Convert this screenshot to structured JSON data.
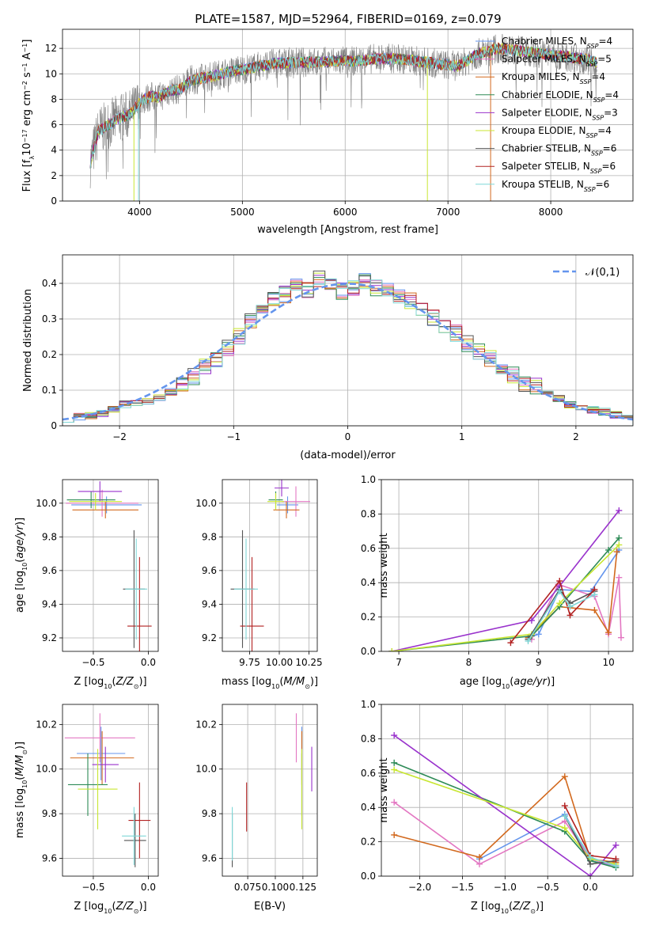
{
  "figure": {
    "title": "PLATE=1587, MJD=52964, FIBERID=0169, z=0.079"
  },
  "colors": {
    "Chabrier MILES": "#6495ed",
    "Salpeter MILES": "#e377c2",
    "Kroupa MILES": "#d2691e",
    "Chabrier ELODIE": "#2e8b57",
    "Salpeter ELODIE": "#9932cc",
    "Kroupa ELODIE": "#c8e632",
    "Chabrier STELIB": "#555555",
    "Salpeter STELIB": "#b22222",
    "Kroupa STELIB": "#7fd7d7",
    "normal_curve": "#6495ed",
    "data_spectrum": "#808080"
  },
  "chart_data": [
    {
      "id": "spectrum",
      "type": "line",
      "title": "PLATE=1587, MJD=52964, FIBERID=0169, z=0.079",
      "xlabel": "wavelength [Angstrom, rest frame]",
      "ylabel": "Flux [f_λ 10^-17 erg cm^-2 s^-1 A^-1]",
      "xlim": [
        3250,
        8800
      ],
      "ylim": [
        0,
        13.5
      ],
      "xticks": [
        4000,
        5000,
        6000,
        7000,
        8000
      ],
      "yticks": [
        0,
        2,
        4,
        6,
        8,
        10,
        12
      ],
      "legend_position": "right",
      "legend": [
        {
          "name": "Chabrier MILES",
          "nssp": 4
        },
        {
          "name": "Salpeter MILES",
          "nssp": 5
        },
        {
          "name": "Kroupa MILES",
          "nssp": 4
        },
        {
          "name": "Chabrier ELODIE",
          "nssp": 4
        },
        {
          "name": "Salpeter ELODIE",
          "nssp": 3
        },
        {
          "name": "Kroupa ELODIE",
          "nssp": 4
        },
        {
          "name": "Chabrier STELIB",
          "nssp": 6
        },
        {
          "name": "Salpeter STELIB",
          "nssp": 6
        },
        {
          "name": "Kroupa STELIB",
          "nssp": 6
        }
      ],
      "continuum": {
        "x": [
          3520,
          3600,
          3700,
          3800,
          3900,
          3950,
          4000,
          4100,
          4200,
          4300,
          4400,
          4500,
          4700,
          4900,
          5100,
          5300,
          5500,
          5700,
          5900,
          6100,
          6300,
          6500,
          6700,
          6900,
          7100,
          7300,
          7400,
          7500,
          7700,
          7900,
          8100,
          8300,
          8450
        ],
        "y": [
          3.0,
          5.5,
          6.0,
          6.5,
          6.8,
          7.2,
          7.8,
          8.2,
          8.2,
          8.7,
          8.8,
          9.5,
          9.8,
          10.2,
          10.5,
          10.8,
          10.9,
          10.9,
          11.0,
          11.0,
          11.2,
          11.2,
          11.0,
          10.8,
          10.6,
          11.6,
          11.8,
          12.0,
          11.8,
          11.6,
          11.4,
          11.2,
          10.9
        ]
      },
      "model_drops_x": [
        3945,
        3990,
        6800,
        7415
      ]
    },
    {
      "id": "residuals",
      "type": "bar",
      "xlabel": "(data-model)/error",
      "ylabel": "Normed distribution",
      "xlim": [
        -2.5,
        2.5
      ],
      "ylim": [
        0,
        0.48
      ],
      "xticks": [
        -2,
        -1,
        0,
        1,
        2
      ],
      "yticks": [
        0.0,
        0.1,
        0.2,
        0.3,
        0.4
      ],
      "bin_width": 0.1,
      "legend_position": "top-right",
      "legend": [
        {
          "name": "𝒩(0,1)"
        }
      ],
      "histogram": {
        "bin_left": [
          -2.5,
          -2.4,
          -2.3,
          -2.2,
          -2.1,
          -2.0,
          -1.9,
          -1.8,
          -1.7,
          -1.6,
          -1.5,
          -1.4,
          -1.3,
          -1.2,
          -1.1,
          -1.0,
          -0.9,
          -0.8,
          -0.7,
          -0.6,
          -0.5,
          -0.4,
          -0.3,
          -0.2,
          -0.1,
          0.0,
          0.1,
          0.2,
          0.3,
          0.4,
          0.5,
          0.6,
          0.7,
          0.8,
          0.9,
          1.0,
          1.1,
          1.2,
          1.3,
          1.4,
          1.5,
          1.6,
          1.7,
          1.8,
          1.9,
          2.0,
          2.1,
          2.2,
          2.3,
          2.4
        ],
        "counts": [
          0.02,
          0.025,
          0.03,
          0.035,
          0.045,
          0.06,
          0.065,
          0.07,
          0.08,
          0.095,
          0.11,
          0.14,
          0.17,
          0.19,
          0.22,
          0.25,
          0.29,
          0.33,
          0.35,
          0.37,
          0.39,
          0.38,
          0.41,
          0.39,
          0.38,
          0.39,
          0.41,
          0.39,
          0.38,
          0.37,
          0.35,
          0.32,
          0.3,
          0.28,
          0.26,
          0.23,
          0.21,
          0.19,
          0.16,
          0.14,
          0.12,
          0.11,
          0.09,
          0.075,
          0.06,
          0.05,
          0.045,
          0.04,
          0.03,
          0.02
        ]
      },
      "normal_pdf": {
        "mean": 0,
        "sigma": 1
      }
    },
    {
      "id": "age-vs-Z",
      "type": "scatter",
      "xlabel": "Z [log10(Z/Z⊙)]",
      "ylabel": "age [log10(age/yr)]",
      "xlim": [
        -0.78,
        0.09
      ],
      "ylim": [
        9.12,
        10.14
      ],
      "xticks": [
        -0.5,
        0.0
      ],
      "xticklabels": [
        "−0.5",
        "0.0"
      ],
      "yticks": [
        9.2,
        9.4,
        9.6,
        9.8,
        10.0
      ],
      "yticklabels": [
        "9.2",
        "9.4",
        "9.6",
        "9.8",
        "10.0"
      ],
      "points": [
        {
          "series": "Chabrier MILES",
          "x": -0.38,
          "y": 9.99,
          "xerr": 0.32,
          "yerr": 0.05
        },
        {
          "series": "Salpeter MILES",
          "x": -0.42,
          "y": 10.0,
          "xerr": 0.33,
          "yerr": 0.08
        },
        {
          "series": "Kroupa MILES",
          "x": -0.39,
          "y": 9.96,
          "xerr": 0.3,
          "yerr": 0.05
        },
        {
          "series": "Chabrier ELODIE",
          "x": -0.52,
          "y": 10.02,
          "xerr": 0.22,
          "yerr": 0.05
        },
        {
          "series": "Salpeter ELODIE",
          "x": -0.44,
          "y": 10.07,
          "xerr": 0.2,
          "yerr": 0.06
        },
        {
          "series": "Kroupa ELODIE",
          "x": -0.48,
          "y": 10.01,
          "xerr": 0.24,
          "yerr": 0.05
        },
        {
          "series": "Chabrier STELIB",
          "x": -0.13,
          "y": 9.49,
          "xerr": 0.1,
          "yerr": 0.35
        },
        {
          "series": "Salpeter STELIB",
          "x": -0.08,
          "y": 9.27,
          "xerr": 0.11,
          "yerr": 0.41
        },
        {
          "series": "Kroupa STELIB",
          "x": -0.11,
          "y": 9.49,
          "xerr": 0.1,
          "yerr": 0.3
        }
      ]
    },
    {
      "id": "age-vs-mass",
      "type": "scatter",
      "xlabel": "mass [log10(M/M⊙)]",
      "ylabel": "",
      "xlim": [
        9.52,
        10.32
      ],
      "ylim": [
        9.12,
        10.14
      ],
      "xticks": [
        9.75,
        10.0,
        10.25
      ],
      "xticklabels": [
        "9.75",
        "10.00",
        "10.25"
      ],
      "yticks": [
        9.2,
        9.4,
        9.6,
        9.8,
        10.0
      ],
      "yticklabels": [
        "9.2",
        "9.4",
        "9.6",
        "9.8",
        "10.0"
      ],
      "points": [
        {
          "series": "Chabrier MILES",
          "x": 10.07,
          "y": 9.99,
          "xerr": 0.09,
          "yerr": 0.05
        },
        {
          "series": "Salpeter MILES",
          "x": 10.14,
          "y": 10.01,
          "xerr": 0.12,
          "yerr": 0.09
        },
        {
          "series": "Kroupa MILES",
          "x": 10.06,
          "y": 9.96,
          "xerr": 0.11,
          "yerr": 0.05
        },
        {
          "series": "Chabrier ELODIE",
          "x": 9.97,
          "y": 10.02,
          "xerr": 0.06,
          "yerr": 0.05
        },
        {
          "series": "Salpeter ELODIE",
          "x": 10.02,
          "y": 10.09,
          "xerr": 0.06,
          "yerr": 0.05
        },
        {
          "series": "Kroupa ELODIE",
          "x": 9.97,
          "y": 10.01,
          "xerr": 0.07,
          "yerr": 0.05
        },
        {
          "series": "Chabrier STELIB",
          "x": 9.69,
          "y": 9.49,
          "xerr": 0.1,
          "yerr": 0.35
        },
        {
          "series": "Salpeter STELIB",
          "x": 9.77,
          "y": 9.27,
          "xerr": 0.1,
          "yerr": 0.41
        },
        {
          "series": "Kroupa STELIB",
          "x": 9.72,
          "y": 9.49,
          "xerr": 0.1,
          "yerr": 0.3
        }
      ]
    },
    {
      "id": "weight-vs-age",
      "type": "line",
      "xlabel": "age [log10(age/yr)]",
      "ylabel": "mass weight",
      "xlim": [
        6.75,
        10.35
      ],
      "ylim": [
        0.0,
        1.0
      ],
      "xticks": [
        7,
        8,
        9,
        10
      ],
      "xticklabels": [
        "7",
        "8",
        "9",
        "10"
      ],
      "yticks": [
        0.0,
        0.2,
        0.4,
        0.6,
        0.8,
        1.0
      ],
      "yticklabels": [
        "0.0",
        "0.2",
        "0.4",
        "0.6",
        "0.8",
        "1.0"
      ],
      "grid": true,
      "series": [
        {
          "name": "Chabrier MILES",
          "x": [
            8.85,
            9.0,
            9.3,
            9.75,
            10.15
          ],
          "y": [
            0.08,
            0.1,
            0.36,
            0.35,
            0.59
          ]
        },
        {
          "name": "Salpeter MILES",
          "x": [
            8.9,
            9.28,
            9.8,
            10.0,
            10.15,
            10.18
          ],
          "y": [
            0.07,
            0.39,
            0.32,
            0.1,
            0.43,
            0.08
          ]
        },
        {
          "name": "Kroupa MILES",
          "x": [
            8.85,
            9.3,
            9.8,
            10.0,
            10.12
          ],
          "y": [
            0.08,
            0.26,
            0.24,
            0.11,
            0.58
          ]
        },
        {
          "name": "Chabrier ELODIE",
          "x": [
            6.9,
            8.9,
            9.3,
            10.0,
            10.15
          ],
          "y": [
            0.0,
            0.09,
            0.26,
            0.59,
            0.66
          ]
        },
        {
          "name": "Salpeter ELODIE",
          "x": [
            6.9,
            8.9,
            9.3,
            10.15
          ],
          "y": [
            0.0,
            0.18,
            0.38,
            0.82
          ]
        },
        {
          "name": "Kroupa ELODIE",
          "x": [
            6.9,
            8.9,
            9.3,
            10.15
          ],
          "y": [
            0.0,
            0.1,
            0.28,
            0.62
          ]
        },
        {
          "name": "Chabrier STELIB",
          "x": [
            8.85,
            9.3,
            9.45,
            9.8
          ],
          "y": [
            0.07,
            0.36,
            0.28,
            0.35
          ]
        },
        {
          "name": "Salpeter STELIB",
          "x": [
            8.6,
            9.3,
            9.45,
            9.8
          ],
          "y": [
            0.05,
            0.41,
            0.21,
            0.36
          ]
        },
        {
          "name": "Kroupa STELIB",
          "x": [
            8.85,
            9.3,
            9.45,
            9.8
          ],
          "y": [
            0.06,
            0.35,
            0.26,
            0.33
          ]
        }
      ]
    },
    {
      "id": "mass-vs-Z",
      "type": "scatter",
      "xlabel": "Z [log10(Z/Z⊙)]",
      "ylabel": "mass [log10(M/M⊙)]",
      "xlim": [
        -0.78,
        0.09
      ],
      "ylim": [
        9.52,
        10.29
      ],
      "xticks": [
        -0.5,
        0.0
      ],
      "xticklabels": [
        "−0.5",
        "0.0"
      ],
      "yticks": [
        9.6,
        9.8,
        10.0,
        10.2
      ],
      "yticklabels": [
        "9.6",
        "9.8",
        "10.0",
        "10.2"
      ],
      "points": [
        {
          "series": "Chabrier MILES",
          "x": -0.43,
          "y": 10.07,
          "xerr": 0.22,
          "yerr": 0.12
        },
        {
          "series": "Salpeter MILES",
          "x": -0.44,
          "y": 10.14,
          "xerr": 0.32,
          "yerr": 0.11
        },
        {
          "series": "Kroupa MILES",
          "x": -0.42,
          "y": 10.05,
          "xerr": 0.29,
          "yerr": 0.12
        },
        {
          "series": "Chabrier ELODIE",
          "x": -0.55,
          "y": 9.93,
          "xerr": 0.18,
          "yerr": 0.14
        },
        {
          "series": "Salpeter ELODIE",
          "x": -0.39,
          "y": 10.02,
          "xerr": 0.12,
          "yerr": 0.08
        },
        {
          "series": "Kroupa ELODIE",
          "x": -0.46,
          "y": 9.91,
          "xerr": 0.18,
          "yerr": 0.18
        },
        {
          "series": "Chabrier STELIB",
          "x": -0.12,
          "y": 9.68,
          "xerr": 0.1,
          "yerr": 0.12
        },
        {
          "series": "Salpeter STELIB",
          "x": -0.08,
          "y": 9.77,
          "xerr": 0.1,
          "yerr": 0.17
        },
        {
          "series": "Kroupa STELIB",
          "x": -0.13,
          "y": 9.7,
          "xerr": 0.11,
          "yerr": 0.13
        }
      ]
    },
    {
      "id": "mass-vs-EBV",
      "type": "scatter",
      "xlabel": "E(B-V)",
      "ylabel": "",
      "xlim": [
        0.052,
        0.138
      ],
      "ylim": [
        9.52,
        10.29
      ],
      "xticks": [
        0.075,
        0.1,
        0.125
      ],
      "xticklabels": [
        "0.075",
        "0.100",
        "0.125"
      ],
      "yticks": [
        9.6,
        9.8,
        10.0,
        10.2
      ],
      "yticklabels": [
        "9.6",
        "9.8",
        "10.0",
        "10.2"
      ],
      "points": [
        {
          "series": "Chabrier MILES",
          "x": 0.124,
          "y": 10.07,
          "xerr": 0,
          "yerr": 0.12
        },
        {
          "series": "Salpeter MILES",
          "x": 0.119,
          "y": 10.14,
          "xerr": 0,
          "yerr": 0.11
        },
        {
          "series": "Kroupa MILES",
          "x": 0.124,
          "y": 10.05,
          "xerr": 0,
          "yerr": 0.12
        },
        {
          "series": "Chabrier ELODIE",
          "x": 0.124,
          "y": 9.93,
          "xerr": 0,
          "yerr": 0.14
        },
        {
          "series": "Salpeter ELODIE",
          "x": 0.133,
          "y": 10.0,
          "xerr": 0,
          "yerr": 0.1
        },
        {
          "series": "Kroupa ELODIE",
          "x": 0.124,
          "y": 9.91,
          "xerr": 0,
          "yerr": 0.18
        },
        {
          "series": "Chabrier STELIB",
          "x": 0.061,
          "y": 9.68,
          "xerr": 0,
          "yerr": 0.12
        },
        {
          "series": "Salpeter STELIB",
          "x": 0.074,
          "y": 9.83,
          "xerr": 0,
          "yerr": 0.11
        },
        {
          "series": "Kroupa STELIB",
          "x": 0.061,
          "y": 9.71,
          "xerr": 0,
          "yerr": 0.12
        }
      ]
    },
    {
      "id": "weight-vs-Z",
      "type": "line",
      "xlabel": "Z [log10(Z/Z⊙)]",
      "ylabel": "mass weight",
      "xlim": [
        -2.45,
        0.5
      ],
      "ylim": [
        0.0,
        1.0
      ],
      "xticks": [
        -2.0,
        -1.5,
        -1.0,
        -0.5,
        0.0
      ],
      "xticklabels": [
        "−2.0",
        "−1.5",
        "−1.0",
        "−0.5",
        "0.0"
      ],
      "yticks": [
        0.0,
        0.2,
        0.4,
        0.6,
        0.8,
        1.0
      ],
      "yticklabels": [
        "0.0",
        "0.2",
        "0.4",
        "0.6",
        "0.8",
        "1.0"
      ],
      "grid": true,
      "series": [
        {
          "name": "Chabrier MILES",
          "x": [
            -1.3,
            -0.3,
            0.0,
            0.3
          ],
          "y": [
            0.1,
            0.36,
            0.09,
            0.06
          ]
        },
        {
          "name": "Salpeter MILES",
          "x": [
            -2.3,
            -1.3,
            -0.3,
            0.0,
            0.3
          ],
          "y": [
            0.43,
            0.07,
            0.32,
            0.1,
            0.06
          ]
        },
        {
          "name": "Kroupa MILES",
          "x": [
            -2.3,
            -1.3,
            -0.3,
            0.0,
            0.3
          ],
          "y": [
            0.24,
            0.11,
            0.58,
            0.1,
            0.08
          ]
        },
        {
          "name": "Chabrier ELODIE",
          "x": [
            -2.3,
            -0.3,
            0.0,
            0.3
          ],
          "y": [
            0.66,
            0.26,
            0.09,
            0.05
          ]
        },
        {
          "name": "Salpeter ELODIE",
          "x": [
            -2.3,
            0.0,
            0.3
          ],
          "y": [
            0.82,
            0.0,
            0.18
          ]
        },
        {
          "name": "Kroupa ELODIE",
          "x": [
            -2.3,
            -0.3,
            0.0,
            0.3
          ],
          "y": [
            0.62,
            0.28,
            0.1,
            0.07
          ]
        },
        {
          "name": "Chabrier STELIB",
          "x": [
            -0.3,
            0.0,
            0.3
          ],
          "y": [
            0.35,
            0.07,
            0.09
          ]
        },
        {
          "name": "Salpeter STELIB",
          "x": [
            -0.3,
            0.0,
            0.3
          ],
          "y": [
            0.41,
            0.12,
            0.1
          ]
        },
        {
          "name": "Kroupa STELIB",
          "x": [
            -0.3,
            0.0,
            0.3
          ],
          "y": [
            0.35,
            0.11,
            0.06
          ]
        }
      ]
    }
  ]
}
